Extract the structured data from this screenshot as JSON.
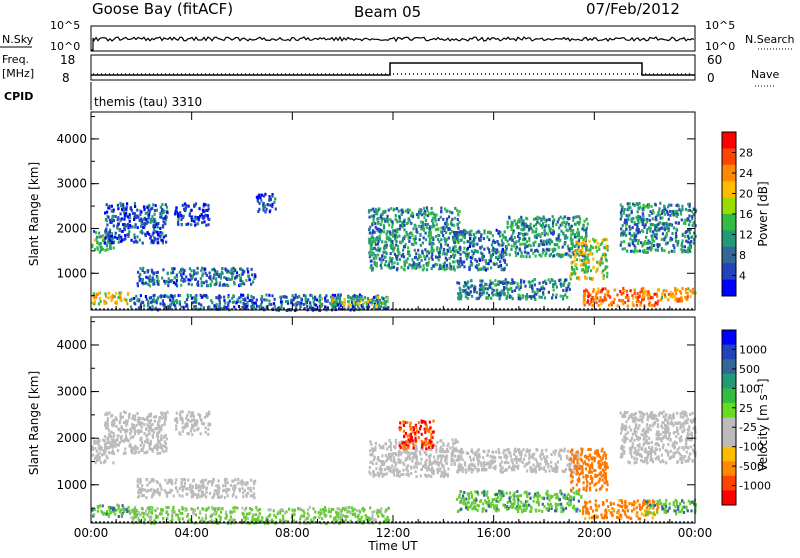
{
  "header": {
    "station": "Goose Bay (fitACF)",
    "beam": "Beam 05",
    "date": "07/Feb/2012"
  },
  "strip": {
    "nsky_label": "N.Sky",
    "nsky_ticks": [
      "10^5",
      "10^0"
    ],
    "nsearch_ticks": [
      "10^5",
      "10^0"
    ],
    "nsearch_label": "N.Search",
    "freq_label": "Freq.",
    "freq_unit": "[MHz]",
    "freq_ticks": [
      "18",
      "8"
    ],
    "nave_ticks": [
      "60",
      "0"
    ],
    "nave_label": "Nave",
    "cpid_label": "CPID",
    "cpid_text": "themis (tau) 3310"
  },
  "axes": {
    "ylabel": "Slant Range [km]",
    "xlabel": "Time UT",
    "y_ticks": [
      "4000",
      "3000",
      "2000",
      "1000"
    ],
    "x_ticks": [
      "00:00",
      "04:00",
      "08:00",
      "12:00",
      "16:00",
      "20:00",
      "00:00"
    ]
  },
  "colorbars": {
    "power": {
      "label": "Power [dB]",
      "ticks": [
        "28",
        "24",
        "20",
        "16",
        "12",
        "8",
        "4"
      ],
      "colors": [
        "#ff0000",
        "#ff4400",
        "#ff8800",
        "#ffbb00",
        "#99dd00",
        "#33bb44",
        "#229977",
        "#336699",
        "#2244bb",
        "#0000ff"
      ]
    },
    "velocity": {
      "label": "Velocity [m s⁻¹]",
      "ticks": [
        "1000",
        "500",
        "100",
        "25",
        "-25",
        "-100",
        "-500",
        "-1000"
      ],
      "colors": [
        "#0000ff",
        "#2244bb",
        "#336699",
        "#229977",
        "#33bb44",
        "#66dd22",
        "#bbbbbb",
        "#bbbbbb",
        "#ffbb00",
        "#ff8800",
        "#ff4400",
        "#ff0000"
      ]
    }
  },
  "chart_data": [
    {
      "type": "heatmap",
      "panel": "power",
      "x_range": [
        "00:00",
        "24:00"
      ],
      "y_range_km": [
        180,
        4600
      ],
      "regions": [
        {
          "t": [
            0.0,
            0.9
          ],
          "r": [
            1500,
            2000
          ],
          "level": 12
        },
        {
          "t": [
            0.5,
            3.0
          ],
          "r": [
            1700,
            2600
          ],
          "level": 6
        },
        {
          "t": [
            3.3,
            4.7
          ],
          "r": [
            2100,
            2600
          ],
          "level": 5
        },
        {
          "t": [
            6.5,
            7.3
          ],
          "r": [
            2400,
            2800
          ],
          "level": 5
        },
        {
          "t": [
            1.8,
            6.5
          ],
          "r": [
            750,
            1150
          ],
          "level": 8
        },
        {
          "t": [
            0.0,
            1.5
          ],
          "r": [
            350,
            600
          ],
          "level": 18
        },
        {
          "t": [
            1.5,
            11.8
          ],
          "r": [
            200,
            550
          ],
          "level": 7
        },
        {
          "t": [
            9.0,
            11.8
          ],
          "r": [
            300,
            500
          ],
          "level": 14
        },
        {
          "t": [
            11.0,
            14.6
          ],
          "r": [
            1100,
            2500
          ],
          "level": 10
        },
        {
          "t": [
            14.5,
            16.5
          ],
          "r": [
            1100,
            2000
          ],
          "level": 8
        },
        {
          "t": [
            14.5,
            19.0
          ],
          "r": [
            450,
            900
          ],
          "level": 9
        },
        {
          "t": [
            16.5,
            19.7
          ],
          "r": [
            1400,
            2300
          ],
          "level": 10
        },
        {
          "t": [
            19.0,
            20.5
          ],
          "r": [
            900,
            1800
          ],
          "level": 16
        },
        {
          "t": [
            19.5,
            22.5
          ],
          "r": [
            300,
            700
          ],
          "level": 24
        },
        {
          "t": [
            22.5,
            24.0
          ],
          "r": [
            400,
            700
          ],
          "level": 20
        },
        {
          "t": [
            21.0,
            24.0
          ],
          "r": [
            1500,
            2600
          ],
          "level": 9
        }
      ]
    },
    {
      "type": "heatmap",
      "panel": "velocity",
      "x_range": [
        "00:00",
        "24:00"
      ],
      "y_range_km": [
        180,
        4600
      ],
      "regions": [
        {
          "t": [
            0.0,
            0.9
          ],
          "r": [
            1500,
            2000
          ],
          "level": 0
        },
        {
          "t": [
            0.5,
            3.0
          ],
          "r": [
            1700,
            2600
          ],
          "level": 0
        },
        {
          "t": [
            3.3,
            4.7
          ],
          "r": [
            2100,
            2600
          ],
          "level": 0
        },
        {
          "t": [
            1.8,
            6.5
          ],
          "r": [
            750,
            1150
          ],
          "level": 0
        },
        {
          "t": [
            0.0,
            1.5
          ],
          "r": [
            350,
            600
          ],
          "level": 80
        },
        {
          "t": [
            1.5,
            11.8
          ],
          "r": [
            200,
            550
          ],
          "level": 40
        },
        {
          "t": [
            11.0,
            14.6
          ],
          "r": [
            1200,
            2000
          ],
          "level": 0
        },
        {
          "t": [
            12.2,
            13.6
          ],
          "r": [
            1800,
            2400
          ],
          "level": -500
        },
        {
          "t": [
            14.5,
            19.5
          ],
          "r": [
            1300,
            1800
          ],
          "level": 0
        },
        {
          "t": [
            14.5,
            19.5
          ],
          "r": [
            450,
            900
          ],
          "level": 80
        },
        {
          "t": [
            19.0,
            20.5
          ],
          "r": [
            900,
            1800
          ],
          "level": -300
        },
        {
          "t": [
            19.5,
            22.5
          ],
          "r": [
            300,
            700
          ],
          "level": -150
        },
        {
          "t": [
            22.0,
            24.0
          ],
          "r": [
            400,
            700
          ],
          "level": 80
        },
        {
          "t": [
            21.0,
            24.0
          ],
          "r": [
            1500,
            2600
          ],
          "level": 0
        }
      ]
    }
  ]
}
